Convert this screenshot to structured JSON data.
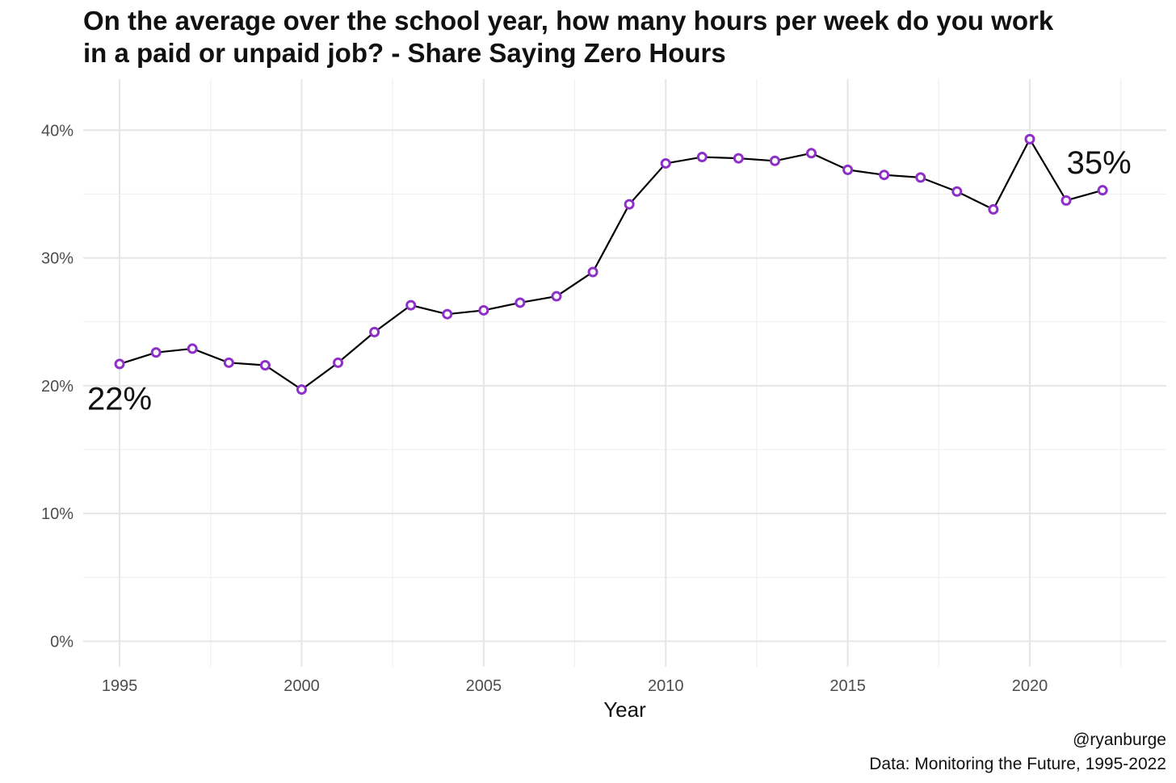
{
  "chart_data": {
    "type": "line",
    "title": [
      "On the average over the school year, how many hours per week do you work",
      "in a paid or unpaid job? - Share Saying Zero Hours"
    ],
    "xlabel": "Year",
    "ylabel": "",
    "x": [
      1995,
      1996,
      1997,
      1998,
      1999,
      2000,
      2001,
      2002,
      2003,
      2004,
      2005,
      2006,
      2007,
      2008,
      2009,
      2010,
      2011,
      2012,
      2013,
      2014,
      2015,
      2016,
      2017,
      2018,
      2019,
      2020,
      2021,
      2022
    ],
    "series": [
      {
        "values": [
          21.7,
          22.6,
          22.9,
          21.8,
          21.6,
          19.7,
          21.8,
          24.2,
          26.3,
          25.6,
          25.9,
          26.5,
          27.0,
          28.9,
          34.2,
          37.4,
          37.9,
          37.8,
          37.6,
          38.2,
          36.9,
          36.5,
          36.3,
          35.2,
          33.8,
          39.3,
          34.5,
          35.3
        ]
      }
    ],
    "xlim": [
      1994.3,
      1993.4
    ],
    "xticks": [
      1995,
      2000,
      2005,
      2010,
      2015,
      2020
    ],
    "xtick_labels": [
      "1995",
      "2000",
      "2005",
      "2010",
      "2015",
      "2020"
    ],
    "ylim": [
      -2,
      44
    ],
    "yticks": [
      0,
      10,
      20,
      30,
      40
    ],
    "ytick_labels": [
      "0%",
      "10%",
      "20%",
      "30%",
      "40%"
    ],
    "grid": true,
    "annotations": [
      {
        "text": "22%",
        "x": 1995.0,
        "y": 19.0,
        "align": "middle"
      },
      {
        "text": "35%",
        "x": 2021.9,
        "y": 37.5,
        "align": "middle"
      }
    ],
    "caption": [
      "@ryanburge",
      "Data: Monitoring the Future, 1995-2022"
    ]
  },
  "colors": {
    "line": "#000000",
    "marker_edge": "#8e2fc7",
    "marker_fill": "#ffffff",
    "grid_major": "#e6e6e6",
    "grid_minor": "#f0f0f0"
  }
}
